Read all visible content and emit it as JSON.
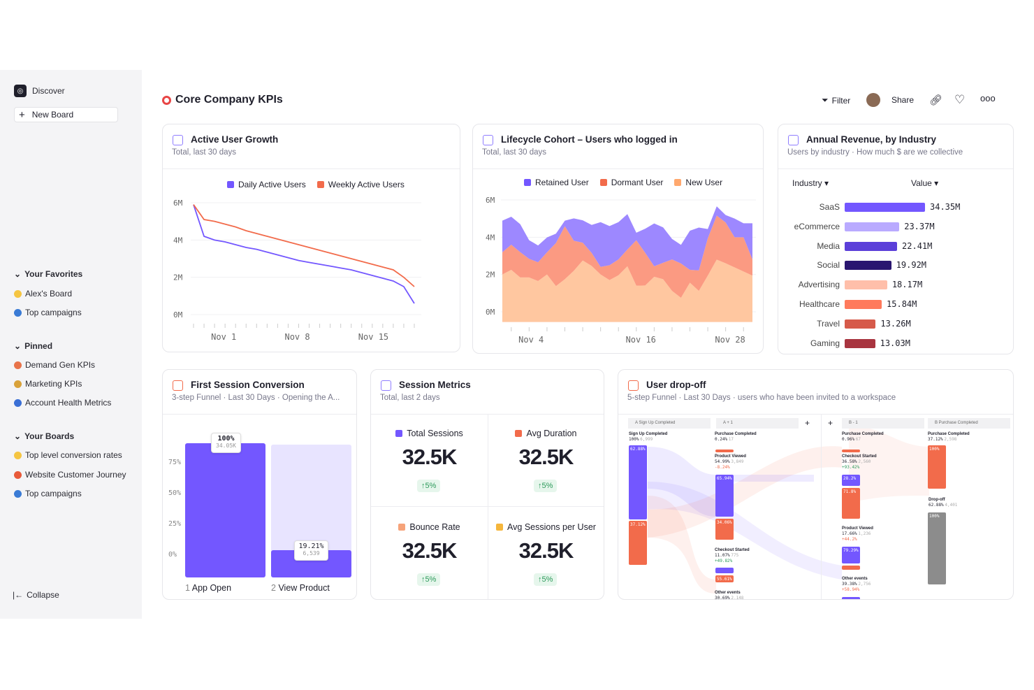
{
  "sidebar": {
    "discover": "Discover",
    "new_board": "New Board",
    "favorites": {
      "title": "Your Favorites",
      "items": [
        {
          "label": "Alex's Board",
          "color": "#f5c542"
        },
        {
          "label": "Top campaigns",
          "color": "#3a7bd5"
        }
      ]
    },
    "pinned": {
      "title": "Pinned",
      "items": [
        {
          "label": "Demand Gen KPIs",
          "color": "#e8734a"
        },
        {
          "label": "Marketing KPIs",
          "color": "#d9a23a"
        },
        {
          "label": "Account Health Metrics",
          "color": "#3a6fd5"
        }
      ]
    },
    "boards": {
      "title": "Your Boards",
      "items": [
        {
          "label": "Top level conversion rates",
          "color": "#f5c542"
        },
        {
          "label": "Website Customer Journey",
          "color": "#e85a3a"
        },
        {
          "label": "Top campaigns",
          "color": "#3a7bd5"
        }
      ]
    },
    "collapse": "Collapse"
  },
  "header": {
    "title": "Core Company KPIs",
    "filter": "Filter",
    "share": "Share"
  },
  "active_users": {
    "title": "Active User Growth",
    "subtitle": "Total, last 30 days"
  },
  "lifecycle": {
    "title": "Lifecycle Cohort – Users who logged in",
    "subtitle": "Total, last 30 days"
  },
  "revenue": {
    "title": "Annual Revenue, by Industry",
    "subtitle": "Users by industry · How much $ are we collective",
    "col1": "Industry",
    "col2": "Value"
  },
  "funnel": {
    "title": "First Session Conversion",
    "subtitle": "3-step Funnel · Last 30 Days · Opening the A..."
  },
  "session": {
    "title": "Session Metrics",
    "subtitle": "Total, last 2 days",
    "metrics": [
      {
        "label": "Total Sessions",
        "value": "32.5K",
        "change": "↑5%",
        "color": "#7357ff"
      },
      {
        "label": "Avg Duration",
        "value": "32.5K",
        "change": "↑5%",
        "color": "#f26b4b"
      },
      {
        "label": "Bounce Rate",
        "value": "32.5K",
        "change": "↑5%",
        "color": "#f6a37a"
      },
      {
        "label": "Avg Sessions per User",
        "value": "32.5K",
        "change": "↑5%",
        "color": "#f5b63c"
      }
    ]
  },
  "dropoff": {
    "title": "User drop-off",
    "subtitle": "5-step Funnel · Last 30 Days · users who have been invited to a workspace",
    "steps": [
      "A Sign Up Completed",
      "A + 1",
      "B - 1",
      "B Purchase Completed"
    ],
    "col_a": {
      "name": "Sign Up Completed",
      "pct": "100%",
      "count": "6,999",
      "seg1": "62.88%",
      "seg2": "37.12%"
    },
    "col_a1": [
      {
        "name": "Purchase Completed",
        "pct": "0.24%",
        "count": "17"
      },
      {
        "name": "Product Viewed",
        "pct": "54.99%",
        "count": "3,849",
        "delta": "-8.24%",
        "seg1": "65.94%",
        "seg2": "34.06%"
      },
      {
        "name": "Checkout Started",
        "pct": "11.07%",
        "count": "775",
        "delta": "+49.82%",
        "seg2": "55.61%"
      },
      {
        "name": "Other events",
        "pct": "30.69%",
        "count": "2,148"
      }
    ],
    "col_b1": [
      {
        "name": "Purchase Completed",
        "pct": "0.96%",
        "count": "67"
      },
      {
        "name": "Checkout Started",
        "pct": "36.58%",
        "count": "2,560",
        "delta": "+93.42%",
        "seg1": "28.2%",
        "seg2": "71.8%"
      },
      {
        "name": "Product Viewed",
        "pct": "17.66%",
        "count": "1,236",
        "delta": "+44.2%",
        "seg1": "79.29%"
      },
      {
        "name": "Other events",
        "pct": "39.38%",
        "count": "2,756",
        "delta": "+58.94%"
      }
    ],
    "col_b": {
      "name": "Purchase Completed",
      "pct": "37.12%",
      "count": "2,598",
      "seg": "100%",
      "drop_name": "Drop-off",
      "drop_pct": "62.88%",
      "drop_count": "4,401",
      "drop_seg": "100%"
    }
  },
  "colors": {
    "purple": "#7357ff",
    "orange": "#f26b4b",
    "peach": "#ffc7a0",
    "accent": "#7357ff"
  },
  "chart_data": [
    {
      "type": "line",
      "title": "Active User Growth",
      "ylim": [
        0,
        6
      ],
      "yticks": [
        "6M",
        "4M",
        "2M",
        "0M"
      ],
      "xticks": [
        "Nov  1",
        "Nov  8",
        "Nov  15"
      ],
      "series": [
        {
          "name": "Daily Active Users",
          "color": "#7357ff",
          "values": [
            5.9,
            4.2,
            4.0,
            3.9,
            3.75,
            3.6,
            3.5,
            3.35,
            3.2,
            3.05,
            2.9,
            2.8,
            2.7,
            2.6,
            2.5,
            2.4,
            2.25,
            2.1,
            1.95,
            1.8,
            1.5,
            0.6
          ]
        },
        {
          "name": "Weekly Active Users",
          "color": "#f26b4b",
          "values": [
            5.9,
            5.1,
            5.0,
            4.85,
            4.7,
            4.5,
            4.35,
            4.2,
            4.05,
            3.9,
            3.75,
            3.6,
            3.45,
            3.3,
            3.15,
            3.0,
            2.85,
            2.7,
            2.55,
            2.4,
            2.0,
            1.5
          ]
        }
      ]
    },
    {
      "type": "area",
      "title": "Lifecycle Cohort",
      "stacked": true,
      "ylim": [
        0,
        6
      ],
      "yticks": [
        "6M",
        "4M",
        "2M",
        "0M"
      ],
      "xticks": [
        "Nov  4",
        "Nov  16",
        "Nov  28"
      ],
      "series": [
        {
          "name": "New User",
          "color": "#ffc7a0",
          "values": [
            2.0,
            2.25,
            1.84,
            1.84,
            1.65,
            2.0,
            1.38,
            1.75,
            2.2,
            2.75,
            2.46,
            2.0,
            1.7,
            1.96,
            2.44,
            1.4,
            1.41,
            1.88,
            1.75,
            1.12,
            0.75,
            1.56,
            1.12,
            1.94,
            2.8,
            2.6,
            2.38,
            2.16,
            1.94
          ]
        },
        {
          "name": "Dormant User",
          "color": "#fb9a82",
          "values": [
            1.19,
            1.35,
            1.36,
            1.0,
            1.01,
            1.19,
            2.31,
            2.84,
            1.61,
            0.96,
            0.7,
            0.41,
            0.8,
            0.85,
            0.9,
            2.44,
            1.75,
            0.56,
            0.88,
            1.69,
            1.84,
            0.69,
            1.1,
            2.0,
            2.36,
            2.19,
            1.62,
            1.84,
            0.87
          ]
        },
        {
          "name": "Retained User",
          "color": "#9d88ff",
          "values": [
            1.7,
            1.5,
            1.5,
            1.0,
            0.9,
            0.8,
            0.5,
            0.3,
            1.2,
            1.2,
            1.5,
            2.4,
            2.1,
            2.0,
            1.9,
            0.4,
            1.3,
            2.3,
            1.9,
            1.1,
            1.0,
            2.1,
            2.3,
            0.5,
            0.5,
            0.4,
            1.0,
            0.75,
            1.94
          ]
        }
      ]
    },
    {
      "type": "bar",
      "orientation": "horizontal",
      "title": "Annual Revenue, by Industry",
      "categories": [
        "SaaS",
        "eCommerce",
        "Media",
        "Social",
        "Advertising",
        "Healthcare",
        "Travel",
        "Gaming"
      ],
      "values": [
        34.35,
        23.37,
        22.41,
        19.92,
        18.17,
        15.84,
        13.26,
        13.03
      ],
      "labels": [
        "34.35M",
        "23.37M",
        "22.41M",
        "19.92M",
        "18.17M",
        "15.84M",
        "13.26M",
        "13.03M"
      ],
      "colors": [
        "#7357ff",
        "#b9aaff",
        "#5b3fd9",
        "#2a1670",
        "#ffbfaa",
        "#ff7a5c",
        "#d65a4a",
        "#a8343f"
      ]
    },
    {
      "type": "bar",
      "title": "First Session Conversion",
      "categories": [
        "App Open",
        "View Product"
      ],
      "steps": [
        "1",
        "2"
      ],
      "values": [
        100,
        19.21
      ],
      "labels": [
        "100%",
        "19.21%"
      ],
      "counts": [
        "34.05K",
        "6,539"
      ],
      "yticks": [
        "75%",
        "50%",
        "25%",
        "0%"
      ]
    }
  ]
}
